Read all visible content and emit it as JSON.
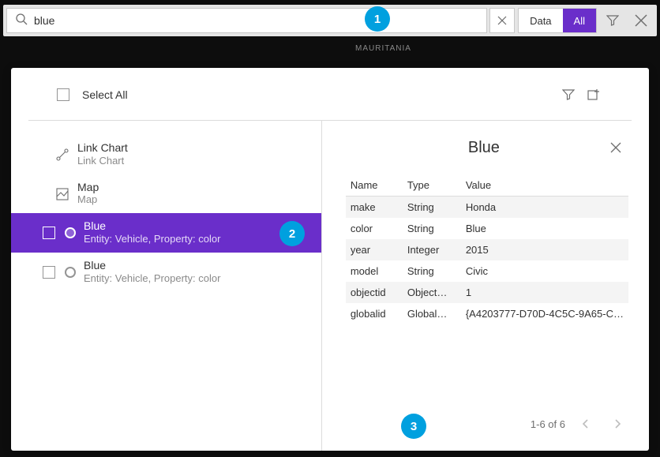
{
  "colors": {
    "accent": "#6a2eca",
    "badge": "#00a0df",
    "panel_bg": "#ffffff",
    "body_bg": "#1a1a1a",
    "border": "#dcdcdc",
    "muted": "#8a8a8a"
  },
  "search": {
    "value": "blue",
    "placeholder": "Search",
    "toggle": {
      "left": "Data",
      "right": "All",
      "active": "right"
    }
  },
  "background_map_label": "MAURITANIA",
  "panel": {
    "select_all": "Select All"
  },
  "results": [
    {
      "type": "linkchart",
      "title": "Link Chart",
      "subtitle": "Link Chart",
      "selected": false,
      "has_checkbox": false
    },
    {
      "type": "map",
      "title": "Map",
      "subtitle": "Map",
      "selected": false,
      "has_checkbox": false
    },
    {
      "type": "entity",
      "title": "Blue",
      "subtitle": "Entity: Vehicle, Property: color",
      "selected": true,
      "has_checkbox": true
    },
    {
      "type": "entity",
      "title": "Blue",
      "subtitle": "Entity: Vehicle, Property: color",
      "selected": false,
      "has_checkbox": true
    }
  ],
  "detail": {
    "title": "Blue",
    "columns": {
      "name": "Name",
      "type": "Type",
      "value": "Value"
    },
    "rows": [
      {
        "name": "make",
        "type": "String",
        "value": "Honda"
      },
      {
        "name": "color",
        "type": "String",
        "value": "Blue"
      },
      {
        "name": "year",
        "type": "Integer",
        "value": "2015"
      },
      {
        "name": "model",
        "type": "String",
        "value": "Civic"
      },
      {
        "name": "objectid",
        "type": "Object…",
        "value": "1"
      },
      {
        "name": "globalid",
        "type": "Global…",
        "value": "{A4203777-D70D-4C5C-9A65-C…"
      }
    ],
    "pagination": "1-6 of 6"
  },
  "badges": {
    "b1": "1",
    "b2": "2",
    "b3": "3"
  }
}
